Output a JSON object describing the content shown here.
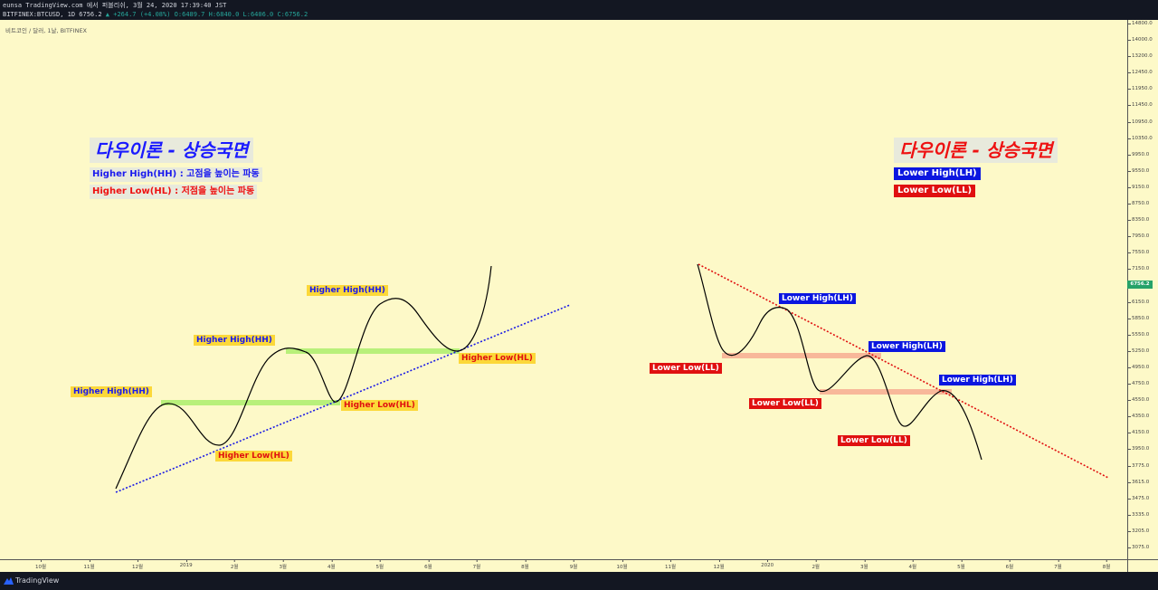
{
  "header": {
    "line1": "eunsa TradingView.com 에서 퍼블리쉬, 3월 24, 2020 17:39:40 JST",
    "symbol": "BITFINEX:BTCUSD, 1D 6756.2",
    "change": "▲ +264.7 (+4.08%)",
    "ohlc": "O:6489.7 H:6840.0 L:6406.0 C:6756.2"
  },
  "chart": {
    "subtitle": "비트코인 / 달러, 1날, BITFINEX",
    "last_price": "6756.2",
    "price_axis": [
      "14800.0",
      "14000.0",
      "13200.0",
      "12450.0",
      "11950.0",
      "11450.0",
      "10950.0",
      "10350.0",
      "9950.0",
      "9550.0",
      "9150.0",
      "8750.0",
      "8350.0",
      "7950.0",
      "7550.0",
      "7150.0",
      "6550.0",
      "6150.0",
      "5850.0",
      "5550.0",
      "5250.0",
      "4950.0",
      "4750.0",
      "4550.0",
      "4350.0",
      "4150.0",
      "3950.0",
      "3775.0",
      "3615.0",
      "3475.0",
      "3335.0",
      "3205.0",
      "3075.0"
    ],
    "time_axis": [
      "10월",
      "11월",
      "12월",
      "2019",
      "2월",
      "3월",
      "4월",
      "5월",
      "6월",
      "7월",
      "8월",
      "9월",
      "10월",
      "11월",
      "12월",
      "2020",
      "2월",
      "3월",
      "4월",
      "5월",
      "6월",
      "7월",
      "8월"
    ]
  },
  "annotations": {
    "uptrend": {
      "title": "다우이론 - 상승국면",
      "def_hh": "Higher High(HH) : 고점을 높이는 파동",
      "def_hl": "Higher Low(HL) : 저점을 높이는 파동",
      "hh_label": "Higher High(HH)",
      "hl_label": "Higher Low(HL)"
    },
    "downtrend": {
      "title": "다우이론 - 상승국면",
      "lh_legend": "Lower High(LH)",
      "ll_legend": "Lower Low(LL)",
      "lh_label": "Lower High(LH)",
      "ll_label": "Lower Low(LL)"
    }
  },
  "footer": {
    "brand": "TradingView"
  },
  "colors": {
    "background": "#fdf9c8",
    "up_trendline": "#1a1ae6",
    "down_trendline": "#e01010",
    "support_band": "#b8f07a",
    "resistance_band": "#f8b89a"
  }
}
